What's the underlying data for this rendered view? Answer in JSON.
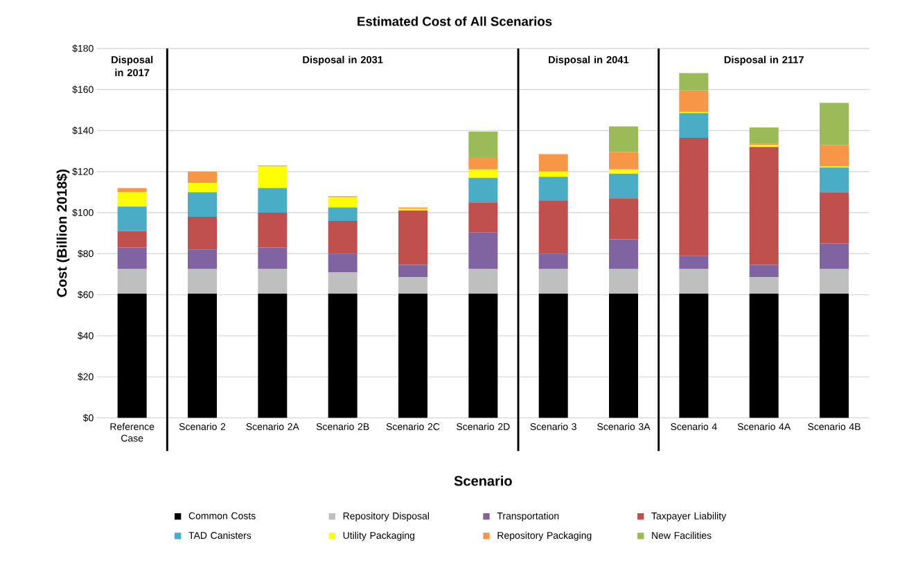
{
  "chart_data": {
    "type": "bar",
    "title": "Estimated Cost of All Scenarios",
    "xlabel": "Scenario",
    "ylabel": "Cost (Billion 2018$)",
    "categories": [
      "Reference Case",
      "Scenario 2",
      "Scenario 2A",
      "Scenario 2B",
      "Scenario 2C",
      "Scenario 2D",
      "Scenario 3",
      "Scenario 3A",
      "Scenario 4",
      "Scenario 4A",
      "Scenario 4B"
    ],
    "stacked": true,
    "series": [
      {
        "name": "Common Costs",
        "color": "#000000",
        "values": [
          60.5,
          60.5,
          60.5,
          60.5,
          60.5,
          60.5,
          60.5,
          60.5,
          60.5,
          60.5,
          60.5
        ]
      },
      {
        "name": "Repository Disposal",
        "color": "#bfbfbf",
        "values": [
          12,
          12,
          12,
          10.5,
          8,
          12,
          12,
          12,
          12,
          8,
          12
        ]
      },
      {
        "name": "Transportation",
        "color": "#8064a2",
        "values": [
          10.5,
          9.5,
          10.5,
          9,
          6,
          18,
          7.5,
          14.5,
          6.5,
          6,
          12.5
        ]
      },
      {
        "name": "Taxpayer Liability",
        "color": "#c0504d",
        "values": [
          8,
          16,
          17,
          16,
          26.5,
          14.5,
          26,
          20,
          57.5,
          57.5,
          25
        ]
      },
      {
        "name": "TAD Canisters",
        "color": "#4bacc6",
        "values": [
          12,
          12,
          12,
          6.5,
          0,
          12,
          11.5,
          12,
          12,
          0,
          12
        ]
      },
      {
        "name": "Utility Packaging",
        "color": "#ffff00",
        "values": [
          7,
          4.5,
          10.5,
          5,
          1,
          4,
          2.5,
          2,
          0.5,
          1,
          0.5
        ]
      },
      {
        "name": "Repository Packaging",
        "color": "#f79646",
        "values": [
          2,
          5.5,
          0.5,
          0.5,
          0.5,
          6,
          8.5,
          8.5,
          10.5,
          0.5,
          10.5
        ]
      },
      {
        "name": "New Facilities",
        "color": "#9bbb59",
        "values": [
          0,
          0,
          0,
          0,
          0,
          12.5,
          0,
          12.5,
          8.5,
          8,
          20.5
        ]
      }
    ],
    "ylim": [
      0,
      180
    ],
    "yticks": [
      {
        "value": 0,
        "label": "$0"
      },
      {
        "value": 20,
        "label": "$20"
      },
      {
        "value": 40,
        "label": "$40"
      },
      {
        "value": 60,
        "label": "$60"
      },
      {
        "value": 80,
        "label": "$80"
      },
      {
        "value": 100,
        "label": "$100"
      },
      {
        "value": 120,
        "label": "$120"
      },
      {
        "value": 140,
        "label": "$140"
      },
      {
        "value": 160,
        "label": "$160"
      },
      {
        "value": 180,
        "label": "$180"
      }
    ],
    "grid": "y",
    "legend": "bottom",
    "annotations": [
      "Disposal in 2017",
      "Disposal in 2031",
      "Disposal in 2041",
      "Disposal in 2117"
    ]
  }
}
